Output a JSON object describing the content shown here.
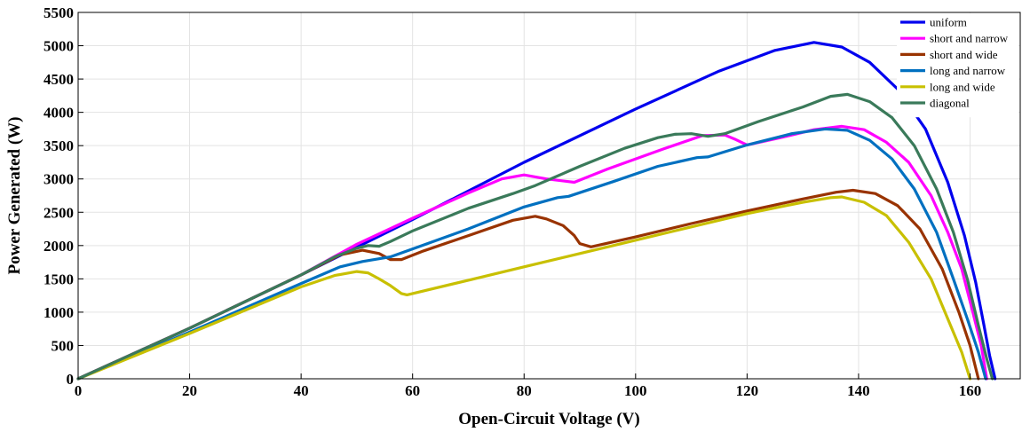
{
  "chart_data": {
    "type": "line",
    "title": "",
    "xlabel": "Open-Circuit Voltage (V)",
    "ylabel": "Power Generated (W)",
    "xlim": [
      0,
      169
    ],
    "ylim": [
      0,
      5500
    ],
    "xticks": [
      0,
      20,
      40,
      60,
      80,
      100,
      120,
      140,
      160
    ],
    "yticks": [
      0,
      500,
      1000,
      1500,
      2000,
      2500,
      3000,
      3500,
      4000,
      4500,
      5000,
      5500
    ],
    "grid": true,
    "legend_position": "top-right",
    "series": [
      {
        "name": "uniform",
        "color": "#0000ee",
        "points": [
          [
            0,
            0
          ],
          [
            20,
            760
          ],
          [
            40,
            1560
          ],
          [
            60,
            2390
          ],
          [
            80,
            3250
          ],
          [
            100,
            4050
          ],
          [
            115,
            4620
          ],
          [
            125,
            4930
          ],
          [
            132,
            5050
          ],
          [
            137,
            4980
          ],
          [
            142,
            4750
          ],
          [
            147,
            4350
          ],
          [
            152,
            3750
          ],
          [
            156,
            2950
          ],
          [
            159,
            2150
          ],
          [
            161,
            1450
          ],
          [
            162.5,
            800
          ],
          [
            163.5,
            350
          ],
          [
            164.5,
            0
          ]
        ]
      },
      {
        "name": "short and narrow",
        "color": "#ff00ff",
        "points": [
          [
            0,
            0
          ],
          [
            20,
            760
          ],
          [
            40,
            1560
          ],
          [
            50,
            2020
          ],
          [
            60,
            2410
          ],
          [
            70,
            2790
          ],
          [
            76,
            3000
          ],
          [
            80,
            3060
          ],
          [
            84,
            3000
          ],
          [
            89,
            2950
          ],
          [
            95,
            3150
          ],
          [
            105,
            3450
          ],
          [
            112,
            3650
          ],
          [
            116,
            3660
          ],
          [
            118,
            3590
          ],
          [
            120,
            3510
          ],
          [
            126,
            3620
          ],
          [
            132,
            3740
          ],
          [
            137,
            3790
          ],
          [
            141,
            3740
          ],
          [
            145,
            3550
          ],
          [
            149,
            3250
          ],
          [
            153,
            2750
          ],
          [
            156,
            2200
          ],
          [
            158.5,
            1650
          ],
          [
            160.5,
            1000
          ],
          [
            162,
            500
          ],
          [
            163,
            0
          ]
        ]
      },
      {
        "name": "short and wide",
        "color": "#993300",
        "points": [
          [
            0,
            0
          ],
          [
            20,
            760
          ],
          [
            40,
            1560
          ],
          [
            47,
            1860
          ],
          [
            51,
            1930
          ],
          [
            54,
            1880
          ],
          [
            56,
            1790
          ],
          [
            58,
            1790
          ],
          [
            62,
            1920
          ],
          [
            70,
            2150
          ],
          [
            78,
            2380
          ],
          [
            82,
            2440
          ],
          [
            84,
            2400
          ],
          [
            87,
            2300
          ],
          [
            89,
            2150
          ],
          [
            90,
            2030
          ],
          [
            92,
            1980
          ],
          [
            100,
            2130
          ],
          [
            110,
            2330
          ],
          [
            120,
            2520
          ],
          [
            130,
            2700
          ],
          [
            136,
            2800
          ],
          [
            139,
            2830
          ],
          [
            143,
            2780
          ],
          [
            147,
            2600
          ],
          [
            151,
            2250
          ],
          [
            155,
            1650
          ],
          [
            158,
            1000
          ],
          [
            160,
            500
          ],
          [
            161.5,
            0
          ]
        ]
      },
      {
        "name": "long and narrow",
        "color": "#0070c0",
        "points": [
          [
            0,
            0
          ],
          [
            20,
            700
          ],
          [
            40,
            1430
          ],
          [
            47,
            1680
          ],
          [
            51,
            1760
          ],
          [
            56,
            1830
          ],
          [
            60,
            1950
          ],
          [
            70,
            2250
          ],
          [
            80,
            2580
          ],
          [
            86,
            2720
          ],
          [
            88,
            2740
          ],
          [
            96,
            2960
          ],
          [
            104,
            3190
          ],
          [
            111,
            3320
          ],
          [
            113,
            3330
          ],
          [
            120,
            3510
          ],
          [
            128,
            3680
          ],
          [
            134,
            3750
          ],
          [
            138,
            3730
          ],
          [
            142,
            3580
          ],
          [
            146,
            3300
          ],
          [
            150,
            2850
          ],
          [
            154,
            2200
          ],
          [
            157,
            1500
          ],
          [
            159.5,
            900
          ],
          [
            161.5,
            400
          ],
          [
            162.8,
            0
          ]
        ]
      },
      {
        "name": "long and wide",
        "color": "#c8c000",
        "points": [
          [
            0,
            0
          ],
          [
            20,
            680
          ],
          [
            40,
            1380
          ],
          [
            46,
            1550
          ],
          [
            50,
            1610
          ],
          [
            52,
            1590
          ],
          [
            54,
            1500
          ],
          [
            56,
            1400
          ],
          [
            58,
            1280
          ],
          [
            59,
            1260
          ],
          [
            60,
            1280
          ],
          [
            70,
            1480
          ],
          [
            80,
            1680
          ],
          [
            90,
            1880
          ],
          [
            100,
            2080
          ],
          [
            110,
            2280
          ],
          [
            120,
            2480
          ],
          [
            130,
            2650
          ],
          [
            135,
            2720
          ],
          [
            137,
            2730
          ],
          [
            141,
            2650
          ],
          [
            145,
            2450
          ],
          [
            149,
            2050
          ],
          [
            153,
            1500
          ],
          [
            156,
            900
          ],
          [
            158.5,
            400
          ],
          [
            160,
            0
          ]
        ]
      },
      {
        "name": "diagonal",
        "color": "#3a7a5a",
        "points": [
          [
            0,
            0
          ],
          [
            20,
            760
          ],
          [
            40,
            1560
          ],
          [
            46,
            1830
          ],
          [
            50,
            1960
          ],
          [
            52,
            2000
          ],
          [
            54,
            1990
          ],
          [
            56,
            2060
          ],
          [
            60,
            2220
          ],
          [
            70,
            2560
          ],
          [
            78,
            2780
          ],
          [
            82,
            2900
          ],
          [
            90,
            3190
          ],
          [
            98,
            3460
          ],
          [
            104,
            3620
          ],
          [
            107,
            3670
          ],
          [
            110,
            3680
          ],
          [
            113,
            3640
          ],
          [
            116,
            3680
          ],
          [
            122,
            3860
          ],
          [
            130,
            4080
          ],
          [
            135,
            4240
          ],
          [
            138,
            4270
          ],
          [
            142,
            4160
          ],
          [
            146,
            3920
          ],
          [
            150,
            3500
          ],
          [
            154,
            2850
          ],
          [
            157,
            2200
          ],
          [
            159.5,
            1500
          ],
          [
            161.5,
            800
          ],
          [
            163,
            300
          ],
          [
            164,
            0
          ]
        ]
      }
    ]
  }
}
